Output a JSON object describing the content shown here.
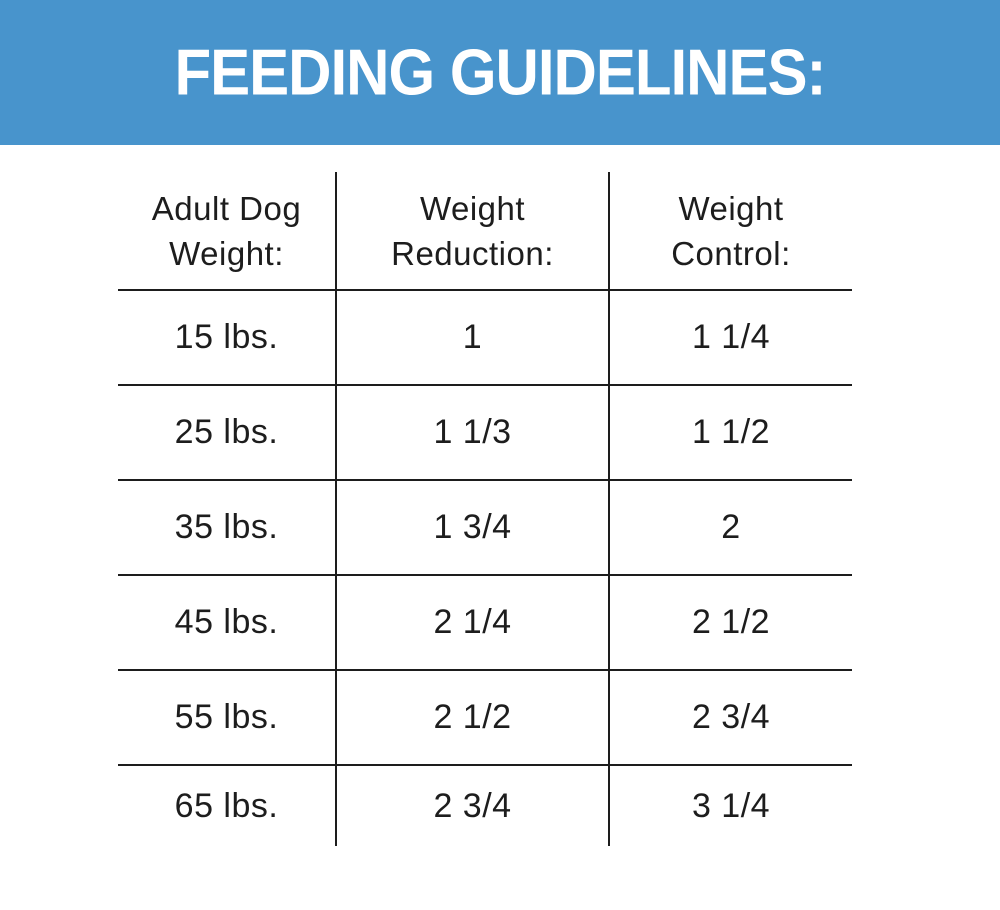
{
  "banner": {
    "title": "FEEDING GUIDELINES:",
    "bg_color": "#4894CC",
    "text_color": "#FFFFFF"
  },
  "table": {
    "headers": [
      [
        "Adult Dog",
        "Weight:"
      ],
      [
        "Weight",
        "Reduction:"
      ],
      [
        "Weight",
        "Control:"
      ]
    ],
    "rows": [
      [
        "15 lbs.",
        "1",
        "1 1/4"
      ],
      [
        "25 lbs.",
        "1 1/3",
        "1 1/2"
      ],
      [
        "35 lbs.",
        "1 3/4",
        "2"
      ],
      [
        "45 lbs.",
        "2 1/4",
        "2 1/2"
      ],
      [
        "55 lbs.",
        "2 1/2",
        "2 3/4"
      ],
      [
        "65 lbs.",
        "2 3/4",
        "3 1/4"
      ]
    ]
  }
}
